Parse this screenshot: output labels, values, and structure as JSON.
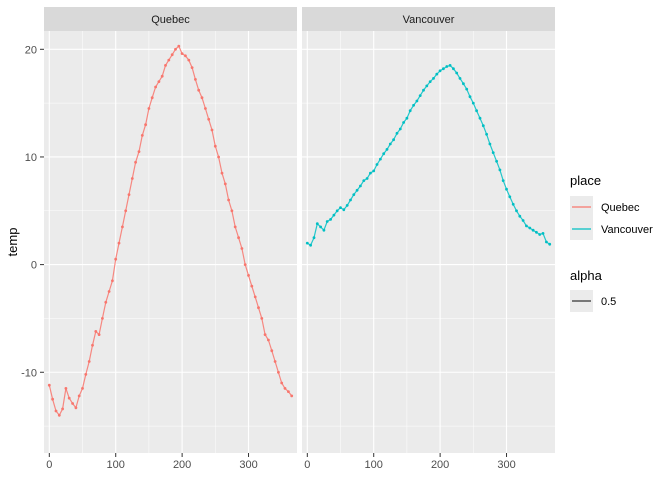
{
  "chart_data": {
    "type": "line",
    "ylabel": "temp",
    "xlabel": "",
    "xlim": [
      -8,
      373
    ],
    "ylim": [
      -17.5,
      21.7
    ],
    "x_ticks": [
      0,
      100,
      200,
      300
    ],
    "y_ticks": [
      -10,
      0,
      10,
      20
    ],
    "grid": true,
    "legend_position": "right",
    "facets": [
      {
        "label": "Quebec",
        "color": "#F8766D",
        "series": {
          "name": "Quebec",
          "x": [
            0,
            5,
            10,
            15,
            20,
            25,
            30,
            35,
            40,
            45,
            50,
            55,
            60,
            65,
            70,
            75,
            80,
            85,
            90,
            95,
            100,
            105,
            110,
            115,
            120,
            125,
            130,
            135,
            140,
            145,
            150,
            155,
            160,
            165,
            170,
            175,
            180,
            185,
            190,
            195,
            200,
            205,
            210,
            215,
            220,
            225,
            230,
            235,
            240,
            245,
            250,
            255,
            260,
            265,
            270,
            275,
            280,
            285,
            290,
            295,
            300,
            305,
            310,
            315,
            320,
            325,
            330,
            335,
            340,
            345,
            350,
            355,
            360,
            365
          ],
          "y": [
            -11.2,
            -12.5,
            -13.6,
            -14.0,
            -13.4,
            -11.5,
            -12.4,
            -12.9,
            -13.3,
            -12.2,
            -11.5,
            -10.2,
            -9.0,
            -7.5,
            -6.2,
            -6.5,
            -5.0,
            -3.5,
            -2.5,
            -1.5,
            0.5,
            2.0,
            3.5,
            5.0,
            6.5,
            8.0,
            9.5,
            10.5,
            12.0,
            13.0,
            14.5,
            15.5,
            16.5,
            17.0,
            17.5,
            18.5,
            19.0,
            19.5,
            20.0,
            20.3,
            19.6,
            19.4,
            19.0,
            18.3,
            17.2,
            16.2,
            15.5,
            14.5,
            13.5,
            12.5,
            11.0,
            10.0,
            8.5,
            7.5,
            6.0,
            5.0,
            3.5,
            2.5,
            1.5,
            0.0,
            -1.0,
            -2.0,
            -3.0,
            -4.0,
            -5.0,
            -6.5,
            -7.0,
            -8.0,
            -9.0,
            -10.0,
            -11.0,
            -11.5,
            -11.8,
            -12.2
          ]
        }
      },
      {
        "label": "Vancouver",
        "color": "#00BFC4",
        "series": {
          "name": "Vancouver",
          "x": [
            0,
            5,
            10,
            15,
            20,
            25,
            30,
            35,
            40,
            45,
            50,
            55,
            60,
            65,
            70,
            75,
            80,
            85,
            90,
            95,
            100,
            105,
            110,
            115,
            120,
            125,
            130,
            135,
            140,
            145,
            150,
            155,
            160,
            165,
            170,
            175,
            180,
            185,
            190,
            195,
            200,
            205,
            210,
            215,
            220,
            225,
            230,
            235,
            240,
            245,
            250,
            255,
            260,
            265,
            270,
            275,
            280,
            285,
            290,
            295,
            300,
            305,
            310,
            315,
            320,
            325,
            330,
            335,
            340,
            345,
            350,
            355,
            360,
            365
          ],
          "y": [
            2.0,
            1.8,
            2.5,
            3.8,
            3.5,
            3.2,
            4.0,
            4.2,
            4.6,
            5.0,
            5.3,
            5.1,
            5.5,
            6.0,
            6.5,
            6.9,
            7.3,
            7.8,
            8.0,
            8.5,
            8.7,
            9.3,
            9.8,
            10.3,
            10.7,
            11.2,
            11.6,
            12.2,
            12.6,
            13.2,
            13.6,
            14.3,
            14.8,
            15.2,
            15.7,
            16.2,
            16.6,
            17.0,
            17.3,
            17.7,
            18.0,
            18.2,
            18.4,
            18.5,
            18.2,
            17.8,
            17.3,
            16.8,
            16.3,
            15.6,
            15.0,
            14.3,
            13.6,
            12.9,
            12.1,
            11.2,
            10.4,
            9.6,
            8.8,
            7.8,
            7.0,
            6.3,
            5.6,
            5.0,
            4.5,
            4.1,
            3.6,
            3.4,
            3.2,
            3.0,
            2.8,
            2.9,
            2.1,
            1.9
          ]
        }
      }
    ],
    "legend": {
      "place": {
        "title": "place",
        "entries": [
          {
            "label": "Quebec",
            "color": "#F8766D"
          },
          {
            "label": "Vancouver",
            "color": "#00BFC4"
          }
        ]
      },
      "alpha": {
        "title": "alpha",
        "entries": [
          {
            "label": "0.5",
            "color": "#333333"
          }
        ]
      }
    }
  }
}
